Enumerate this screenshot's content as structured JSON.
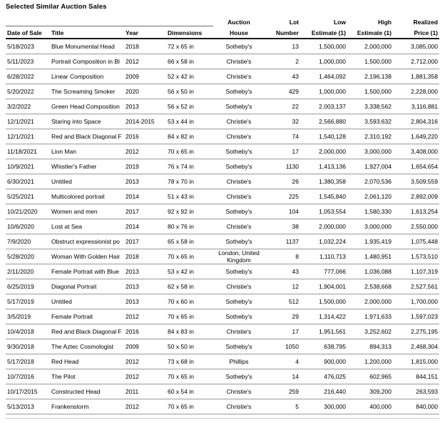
{
  "page_title": "Selected Similar Auction Sales",
  "colors": {
    "text": "#000000",
    "header_rule": "#1a1a1a",
    "row_rule": "#999999"
  },
  "table": {
    "columns": [
      {
        "line1": "",
        "line2": "Date of Sale"
      },
      {
        "line1": "",
        "line2": "Title"
      },
      {
        "line1": "",
        "line2": "Year"
      },
      {
        "line1": "",
        "line2": "Dimensions"
      },
      {
        "line1": "Auction",
        "line2": "House"
      },
      {
        "line1": "Lot",
        "line2": "Number"
      },
      {
        "line1": "Low",
        "line2": "Estimate (1)"
      },
      {
        "line1": "High",
        "line2": "Estimate (1)"
      },
      {
        "line1": "Realized",
        "line2": "Price (1)"
      }
    ],
    "rows": [
      [
        "5/18/2023",
        "Blue Monumental Head",
        "2018",
        "72 x 65 in",
        "Sotheby's",
        "13",
        "1,500,000",
        "2,000,000",
        "3,085,000"
      ],
      [
        "5/11/2023",
        "Portrait Composition in Bl",
        "2012",
        "66 x 58 in",
        "Christie's",
        "2",
        "1,000,000",
        "1,500,000",
        "2,712,000"
      ],
      [
        "6/28/2022",
        "Linear Composition",
        "2009",
        "52 x 42 in",
        "Christie's",
        "43",
        "1,464,092",
        "2,196,138",
        "1,881,358"
      ],
      [
        "5/20/2022",
        "The Screaming Smoker",
        "2020",
        "56 x 50 in",
        "Sotheby's",
        "429",
        "1,000,000",
        "1,500,000",
        "2,228,000"
      ],
      [
        "3/2/2022",
        "Green Head Composition",
        "2013",
        "56 x 52 in",
        "Sotheby's",
        "22",
        "2,003,137",
        "3,338,562",
        "3,116,881"
      ],
      [
        "12/1/2021",
        "Staring into Space",
        "2014-2015",
        "53 x 44 in",
        "Christie's",
        "32",
        "2,566,880",
        "3,593,632",
        "2,804,316"
      ],
      [
        "12/1/2021",
        "Red and Black Diagonal F",
        "2016",
        "84 x 82 in",
        "Christie's",
        "74",
        "1,540,128",
        "2,310,192",
        "1,649,220"
      ],
      [
        "11/18/2021",
        "Lion Man",
        "2012",
        "70 x 65 in",
        "Sotheby's",
        "17",
        "2,000,000",
        "3,000,000",
        "3,408,000"
      ],
      [
        "10/9/2021",
        "Whistler's Father",
        "2019",
        "76 x 74 in",
        "Sotheby's",
        "1130",
        "1,413,136",
        "1,927,004",
        "1,654,654"
      ],
      [
        "6/30/2021",
        "Untitled",
        "2013",
        "78 x 70 in",
        "Christie's",
        "26",
        "1,380,358",
        "2,070,536",
        "3,509,559"
      ],
      [
        "5/25/2021",
        "Multicolored portrait",
        "2014",
        "51 x 43 in",
        "Christie's",
        "225",
        "1,545,840",
        "2,061,120",
        "2,892,009"
      ],
      [
        "10/21/2020",
        "Women and men",
        "2017",
        "92 x 92 in",
        "Sotheby's",
        "104",
        "1,053,554",
        "1,580,330",
        "1,613,254"
      ],
      [
        "10/6/2020",
        "Lost at Sea",
        "2014",
        "80 x 76 in",
        "Christie's",
        "38",
        "2,000,000",
        "3,000,000",
        "2,550,000"
      ],
      [
        "7/9/2020",
        "Obstruct expressionist po",
        "2017",
        "65 x 58 in",
        "Sotheby's",
        "1137",
        "1,032,224",
        "1,935,419",
        "1,075,448"
      ],
      [
        "5/28/2020",
        "Woman With Golden Hair",
        "2018",
        "70 x 65 in",
        "London, United Kingdom",
        "8",
        "1,110,713",
        "1,480,951",
        "1,573,510"
      ],
      [
        "2/11/2020",
        "Female Portrait with Blue",
        "2013",
        "53 x 42 in",
        "Sotheby's",
        "43",
        "777,066",
        "1,036,088",
        "1,107,319"
      ],
      [
        "6/25/2019",
        "Diagonal Portrait",
        "2013",
        "62 x 58 in",
        "Christie's",
        "12",
        "1,904,001",
        "2,538,668",
        "2,527,561"
      ],
      [
        "5/17/2019",
        "Untitled",
        "2013",
        "70 x 60 in",
        "Sotheby's",
        "512",
        "1,500,000",
        "2,000,000",
        "1,700,000"
      ],
      [
        "3/5/2019",
        "Female Portrait",
        "2012",
        "70 x 65 in",
        "Sotheby's",
        "29",
        "1,314,422",
        "1,971,633",
        "1,597,023"
      ],
      [
        "10/4/2018",
        "Red and Black Diagonal F",
        "2016",
        "84 x 83 in",
        "Christie's",
        "17",
        "1,951,561",
        "3,252,602",
        "2,275,195"
      ],
      [
        "9/30/2018",
        "The Aztec Cosmologist",
        "2009",
        "50 x 50 in",
        "Sotheby's",
        "1050",
        "638,795",
        "894,313",
        "2,468,304"
      ],
      [
        "5/17/2018",
        "Red Head",
        "2012",
        "73 x 68 in",
        "Phillips",
        "4",
        "900,000",
        "1,200,000",
        "1,815,000"
      ],
      [
        "10/7/2016",
        "The Pilot",
        "2012",
        "70 x 65 in",
        "Sotheby's",
        "14",
        "476,025",
        "602,965",
        "844,151"
      ],
      [
        "10/17/2015",
        "Constructed Head",
        "2011",
        "60 x 54 in",
        "Christie's",
        "259",
        "216,440",
        "309,200",
        "263,593"
      ],
      [
        "5/13/2013",
        "Frankenstorm",
        "2012",
        "70 x 65 in",
        "Christie's",
        "5",
        "300,000",
        "400,000",
        "840,000"
      ]
    ]
  }
}
